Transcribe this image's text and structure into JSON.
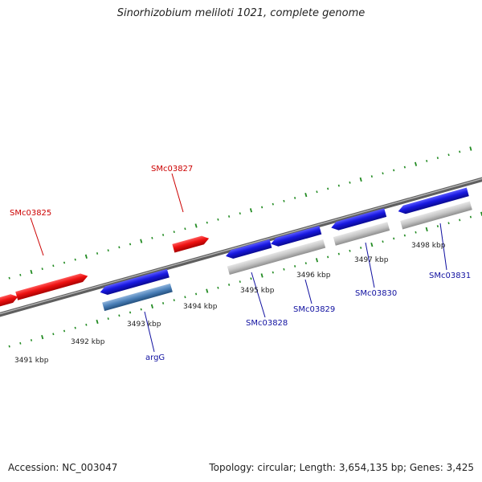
{
  "title": "Sinorhizobium meliloti 1021, complete genome",
  "footer": {
    "accession": "Accession: NC_003047",
    "summary": "Topology: circular; Length: 3,654,135 bp; Genes: 3,425"
  },
  "colors": {
    "forward_gene": "#ee1111",
    "reverse_gene": "#1818e0",
    "cds_feature": "#c4c4c4",
    "selected_feature": "#4a7fb8",
    "backbone": "#808080",
    "ticks": "#228b22",
    "label_forward": "#cc0000",
    "label_reverse": "#1010a0"
  },
  "tick_labels": [
    "3491 kbp",
    "3492 kbp",
    "3493 kbp",
    "3494 kbp",
    "3495 kbp",
    "3496 kbp",
    "3497 kbp",
    "3498 kbp"
  ],
  "genes": {
    "SMc03825": "SMc03825",
    "SMc03827": "SMc03827",
    "argG": "argG",
    "SMc03828": "SMc03828",
    "SMc03829": "SMc03829",
    "SMc03830": "SMc03830",
    "SMc03831": "SMc03831"
  }
}
